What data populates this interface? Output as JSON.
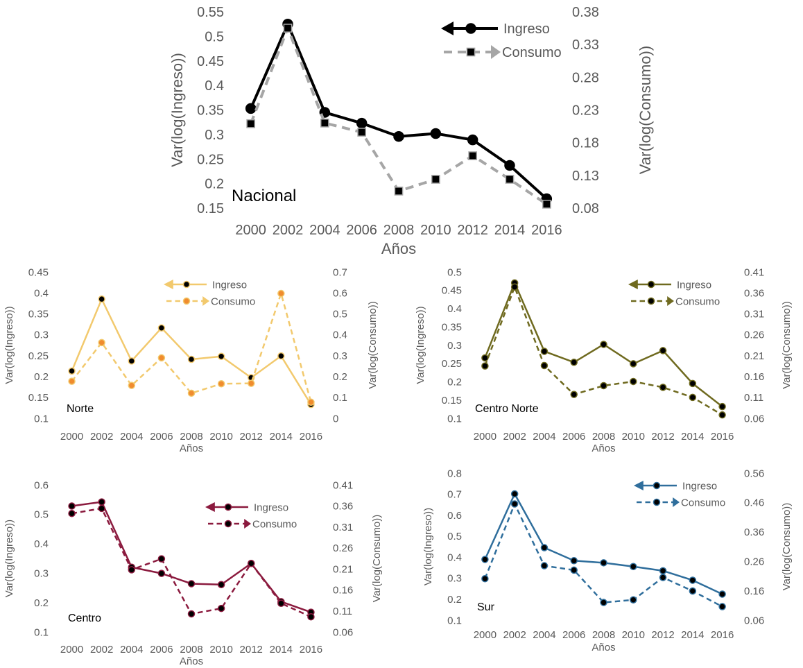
{
  "chart_data": [
    {
      "type": "line",
      "panel_label": "Nacional",
      "xlabel": "Años",
      "ylabel_left": "Var(log(Ingreso))",
      "ylabel_right": "Var(log(Consumo))",
      "x": [
        "2000",
        "2002",
        "2004",
        "2006",
        "2008",
        "2010",
        "2012",
        "2014",
        "2016"
      ],
      "yticks_left": [
        "0.15",
        "0.2",
        "0.25",
        "0.3",
        "0.35",
        "0.4",
        "0.45",
        "0.5",
        "0.55"
      ],
      "yticks_right": [
        "0.08",
        "0.13",
        "0.18",
        "0.23",
        "0.28",
        "0.33",
        "0.38"
      ],
      "ylim_left": [
        0.15,
        0.55
      ],
      "ylim_right": [
        0.08,
        0.38
      ],
      "color": "#000000",
      "consumo_color": "#a6a6a6",
      "marker_fill": "#000000",
      "series": [
        {
          "name": "Ingreso",
          "axis": "left",
          "dash": false,
          "values": [
            0.353,
            0.525,
            0.345,
            0.323,
            0.296,
            0.302,
            0.289,
            0.237,
            0.169
          ]
        },
        {
          "name": "Consumo",
          "axis": "right",
          "dash": true,
          "values": [
            0.209,
            0.355,
            0.21,
            0.196,
            0.106,
            0.124,
            0.16,
            0.124,
            0.086
          ]
        }
      ],
      "legend": "top-right"
    },
    {
      "type": "line",
      "panel_label": "Norte",
      "xlabel": "Años",
      "ylabel_left": "Var(log(Ingreso))",
      "ylabel_right": "Var(log(Consumo))",
      "x": [
        "2000",
        "2002",
        "2004",
        "2006",
        "2008",
        "2010",
        "2012",
        "2014",
        "2016"
      ],
      "yticks_left": [
        "0.1",
        "0.15",
        "0.2",
        "0.25",
        "0.3",
        "0.35",
        "0.4",
        "0.45"
      ],
      "yticks_right": [
        "0",
        "0.1",
        "0.2",
        "0.3",
        "0.4",
        "0.5",
        "0.6",
        "0.7"
      ],
      "ylim_left": [
        0.1,
        0.45
      ],
      "ylim_right": [
        0,
        0.7
      ],
      "color": "#f2c96d",
      "consumo_color": "#f2c96d",
      "marker_fill": "#000000",
      "consumo_marker_fill": "#f08c2e",
      "series": [
        {
          "name": "Ingreso",
          "axis": "left",
          "dash": false,
          "values": [
            0.213,
            0.385,
            0.237,
            0.316,
            0.241,
            0.248,
            0.197,
            0.249,
            0.133
          ]
        },
        {
          "name": "Consumo",
          "axis": "right",
          "dash": true,
          "values": [
            0.177,
            0.362,
            0.157,
            0.289,
            0.12,
            0.165,
            0.167,
            0.597,
            0.077
          ]
        }
      ],
      "legend": "top-right"
    },
    {
      "type": "line",
      "panel_label": "Centro Norte",
      "xlabel": "Años",
      "ylabel_left": "Var(log(Ingreso))",
      "ylabel_right": "Var(log(Consumo))",
      "x": [
        "2000",
        "2002",
        "2004",
        "2006",
        "2008",
        "2010",
        "2012",
        "2014",
        "2016"
      ],
      "yticks_left": [
        "0.1",
        "0.15",
        "0.2",
        "0.25",
        "0.3",
        "0.35",
        "0.4",
        "0.45",
        "0.5"
      ],
      "yticks_right": [
        "0.06",
        "0.11",
        "0.16",
        "0.21",
        "0.26",
        "0.31",
        "0.36",
        "0.41"
      ],
      "ylim_left": [
        0.1,
        0.5
      ],
      "ylim_right": [
        0.06,
        0.41
      ],
      "color": "#6f6a1f",
      "consumo_color": "#6f6a1f",
      "marker_fill": "#000000",
      "series": [
        {
          "name": "Ingreso",
          "axis": "left",
          "dash": false,
          "values": [
            0.265,
            0.47,
            0.283,
            0.253,
            0.302,
            0.249,
            0.285,
            0.195,
            0.132
          ]
        },
        {
          "name": "Consumo",
          "axis": "right",
          "dash": true,
          "values": [
            0.185,
            0.374,
            0.186,
            0.117,
            0.138,
            0.148,
            0.134,
            0.11,
            0.068
          ]
        }
      ],
      "legend": "top-right"
    },
    {
      "type": "line",
      "panel_label": "Centro",
      "xlabel": "Años",
      "ylabel_left": "Var(log(Ingreso))",
      "ylabel_right": "Var(log(Consumo))",
      "x": [
        "2000",
        "2002",
        "2004",
        "2006",
        "2008",
        "2010",
        "2012",
        "2014",
        "2016"
      ],
      "yticks_left": [
        "0.1",
        "0.2",
        "0.3",
        "0.4",
        "0.5",
        "0.6"
      ],
      "yticks_right": [
        "0.06",
        "0.11",
        "0.16",
        "0.21",
        "0.26",
        "0.31",
        "0.36",
        "0.41"
      ],
      "ylim_left": [
        0.1,
        0.6
      ],
      "ylim_right": [
        0.06,
        0.41
      ],
      "color": "#8b1a3e",
      "consumo_color": "#8b1a3e",
      "marker_fill": "#000000",
      "series": [
        {
          "name": "Ingreso",
          "axis": "left",
          "dash": false,
          "values": [
            0.528,
            0.542,
            0.32,
            0.299,
            0.264,
            0.261,
            0.333,
            0.203,
            0.167
          ]
        },
        {
          "name": "Consumo",
          "axis": "right",
          "dash": true,
          "values": [
            0.342,
            0.354,
            0.208,
            0.234,
            0.103,
            0.116,
            0.223,
            0.128,
            0.096
          ]
        }
      ],
      "legend": "top-right"
    },
    {
      "type": "line",
      "panel_label": "Sur",
      "xlabel": "Años",
      "ylabel_left": "Var(log(Ingreso))",
      "ylabel_right": "Var(log(Consumo))",
      "x": [
        "2000",
        "2002",
        "2004",
        "2006",
        "2008",
        "2010",
        "2012",
        "2014",
        "2016"
      ],
      "yticks_left": [
        "0.1",
        "0.2",
        "0.3",
        "0.4",
        "0.5",
        "0.6",
        "0.7",
        "0.8"
      ],
      "yticks_right": [
        "0.06",
        "0.16",
        "0.26",
        "0.36",
        "0.46",
        "0.56"
      ],
      "ylim_left": [
        0.1,
        0.8
      ],
      "ylim_right": [
        0.06,
        0.56
      ],
      "color": "#2f6e9c",
      "consumo_color": "#2f6e9c",
      "marker_fill": "#000000",
      "series": [
        {
          "name": "Ingreso",
          "axis": "left",
          "dash": false,
          "values": [
            0.389,
            0.701,
            0.445,
            0.383,
            0.373,
            0.355,
            0.335,
            0.29,
            0.224
          ]
        },
        {
          "name": "Consumo",
          "axis": "right",
          "dash": true,
          "values": [
            0.201,
            0.455,
            0.245,
            0.23,
            0.12,
            0.129,
            0.205,
            0.159,
            0.106
          ]
        }
      ],
      "legend": "top-right"
    }
  ]
}
